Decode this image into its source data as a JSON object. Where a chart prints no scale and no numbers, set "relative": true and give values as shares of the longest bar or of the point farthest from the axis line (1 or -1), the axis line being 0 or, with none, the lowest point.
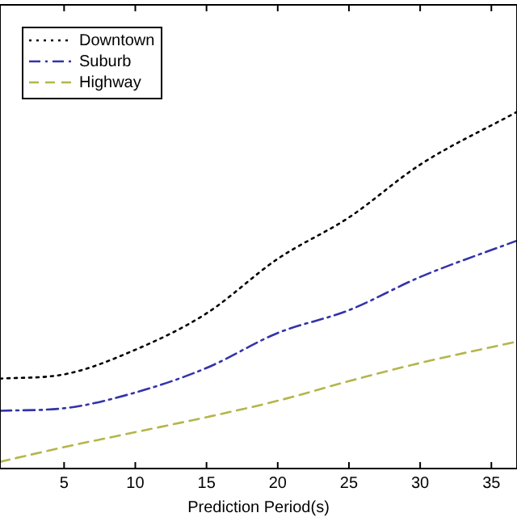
{
  "chart_data": {
    "type": "line",
    "xlabel": "Prediction Period(s)",
    "relative": true,
    "xlim": [
      0.5,
      36.8
    ],
    "xticks": [
      5,
      10,
      15,
      20,
      25,
      30,
      35
    ],
    "legend": "top left",
    "grid": false,
    "marker": "none",
    "x": [
      0.5,
      5,
      10,
      15,
      20,
      25,
      30,
      36.8
    ],
    "series": [
      {
        "name": "Downtown",
        "color": "#000000",
        "line_style": "dotted",
        "values": [
          0.252,
          0.264,
          0.333,
          0.435,
          0.588,
          0.704,
          0.852,
          1
        ]
      },
      {
        "name": "Suburb",
        "color": "#3333aa",
        "line_style": "dashdot",
        "values": [
          0.162,
          0.169,
          0.213,
          0.282,
          0.38,
          0.444,
          0.537,
          0.639
        ]
      },
      {
        "name": "Highway",
        "color": "#b5b54a",
        "line_style": "dashed",
        "values": [
          0.019,
          0.06,
          0.102,
          0.144,
          0.19,
          0.245,
          0.296,
          0.356
        ]
      }
    ]
  }
}
